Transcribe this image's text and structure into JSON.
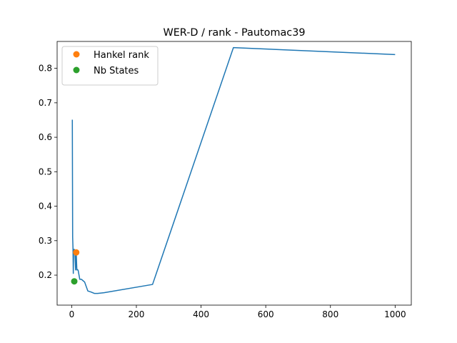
{
  "chart_data": {
    "type": "line",
    "title": "WER-D / rank - Pautomac39",
    "xlabel": "",
    "ylabel": "",
    "xlim": [
      -45,
      1050
    ],
    "ylim": [
      0.113,
      0.878
    ],
    "xticks": [
      0,
      200,
      400,
      600,
      800,
      1000
    ],
    "yticks": [
      0.2,
      0.3,
      0.4,
      0.5,
      0.6,
      0.7,
      0.8
    ],
    "grid": false,
    "legend_position": "top-left",
    "series": [
      {
        "kind": "line",
        "color": "#1f77b4",
        "x": [
          2,
          3,
          4,
          5,
          6,
          8,
          10,
          12,
          14,
          16,
          18,
          20,
          25,
          30,
          35,
          40,
          45,
          50,
          60,
          70,
          80,
          100,
          250,
          500,
          1000
        ],
        "y": [
          0.651,
          0.31,
          0.28,
          0.205,
          0.274,
          0.275,
          0.265,
          0.215,
          0.265,
          0.215,
          0.216,
          0.214,
          0.188,
          0.188,
          0.184,
          0.18,
          0.167,
          0.154,
          0.151,
          0.147,
          0.147,
          0.149,
          0.173,
          0.86,
          0.84
        ]
      },
      {
        "kind": "point",
        "name": "Hankel rank",
        "color": "#ff7f0e",
        "x": [
          14
        ],
        "y": [
          0.266
        ]
      },
      {
        "kind": "point",
        "name": "Nb States",
        "color": "#2ca02c",
        "x": [
          8
        ],
        "y": [
          0.182
        ]
      }
    ]
  }
}
